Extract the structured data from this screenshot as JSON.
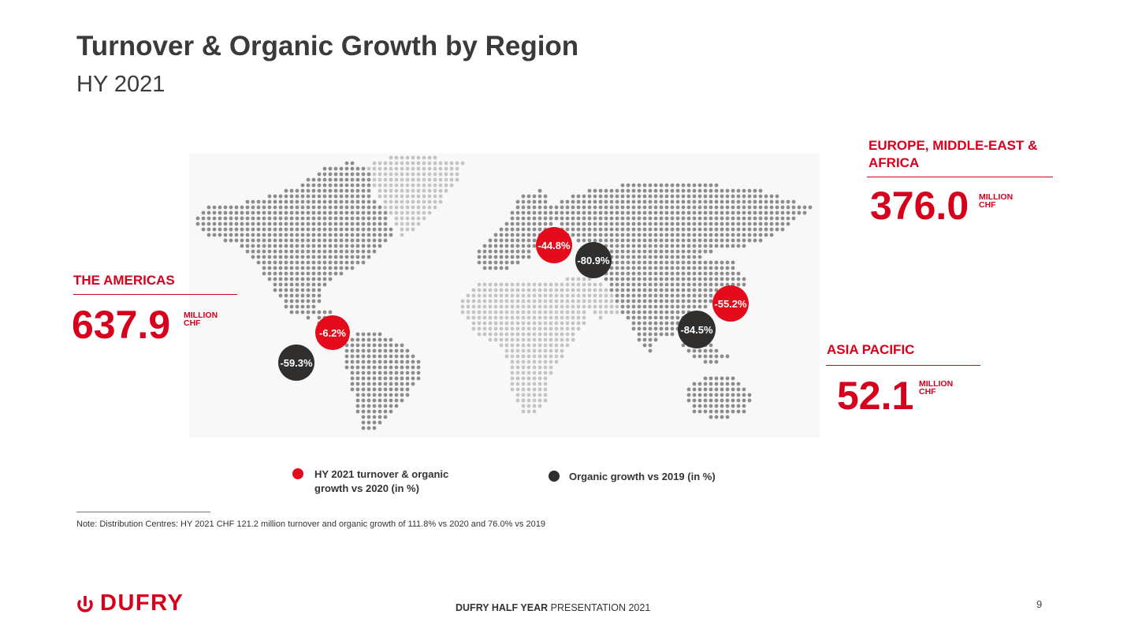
{
  "slide": {
    "title": "Turnover & Organic Growth by Region",
    "subtitle": "HY 2021"
  },
  "regions": {
    "americas": {
      "name": "THE AMERICAS",
      "value": "637.9",
      "unit_line1": "MILLION",
      "unit_line2": "CHF"
    },
    "emea": {
      "name_line1": "EUROPE, MIDDLE-EAST &",
      "name_line2": "AFRICA",
      "value": "376.0",
      "unit_line1": "MILLION",
      "unit_line2": "CHF"
    },
    "apac": {
      "name": "ASIA PACIFIC",
      "value": "52.1",
      "unit_line1": "MILLION",
      "unit_line2": "CHF"
    }
  },
  "growth": {
    "americas": {
      "vs_2020": "-6.2%",
      "vs_2019": "-59.3%"
    },
    "emea": {
      "vs_2020": "-44.8%",
      "vs_2019": "-80.9%"
    },
    "apac": {
      "vs_2020": "-55.2%",
      "vs_2019": "-84.5%"
    }
  },
  "legend": {
    "red_line1": "HY 2021 turnover & organic",
    "red_line2": "growth vs 2020 (in %)",
    "dark": "Organic growth vs 2019 (in %)"
  },
  "note": "Note: Distribution Centres: HY 2021 CHF 121.2 million turnover and organic growth of  111.8% vs 2020 and 76.0% vs 2019",
  "footer": {
    "brand": "DUFRY",
    "presentation_bold": "DUFRY HALF YEAR",
    "presentation_rest": " PRESENTATION 2021",
    "page": "9"
  },
  "colors": {
    "accent_red": "#d6001c",
    "bubble_red": "#e30b1c",
    "bubble_dark": "#302f2d",
    "map_dot": "#8c8c8c"
  }
}
